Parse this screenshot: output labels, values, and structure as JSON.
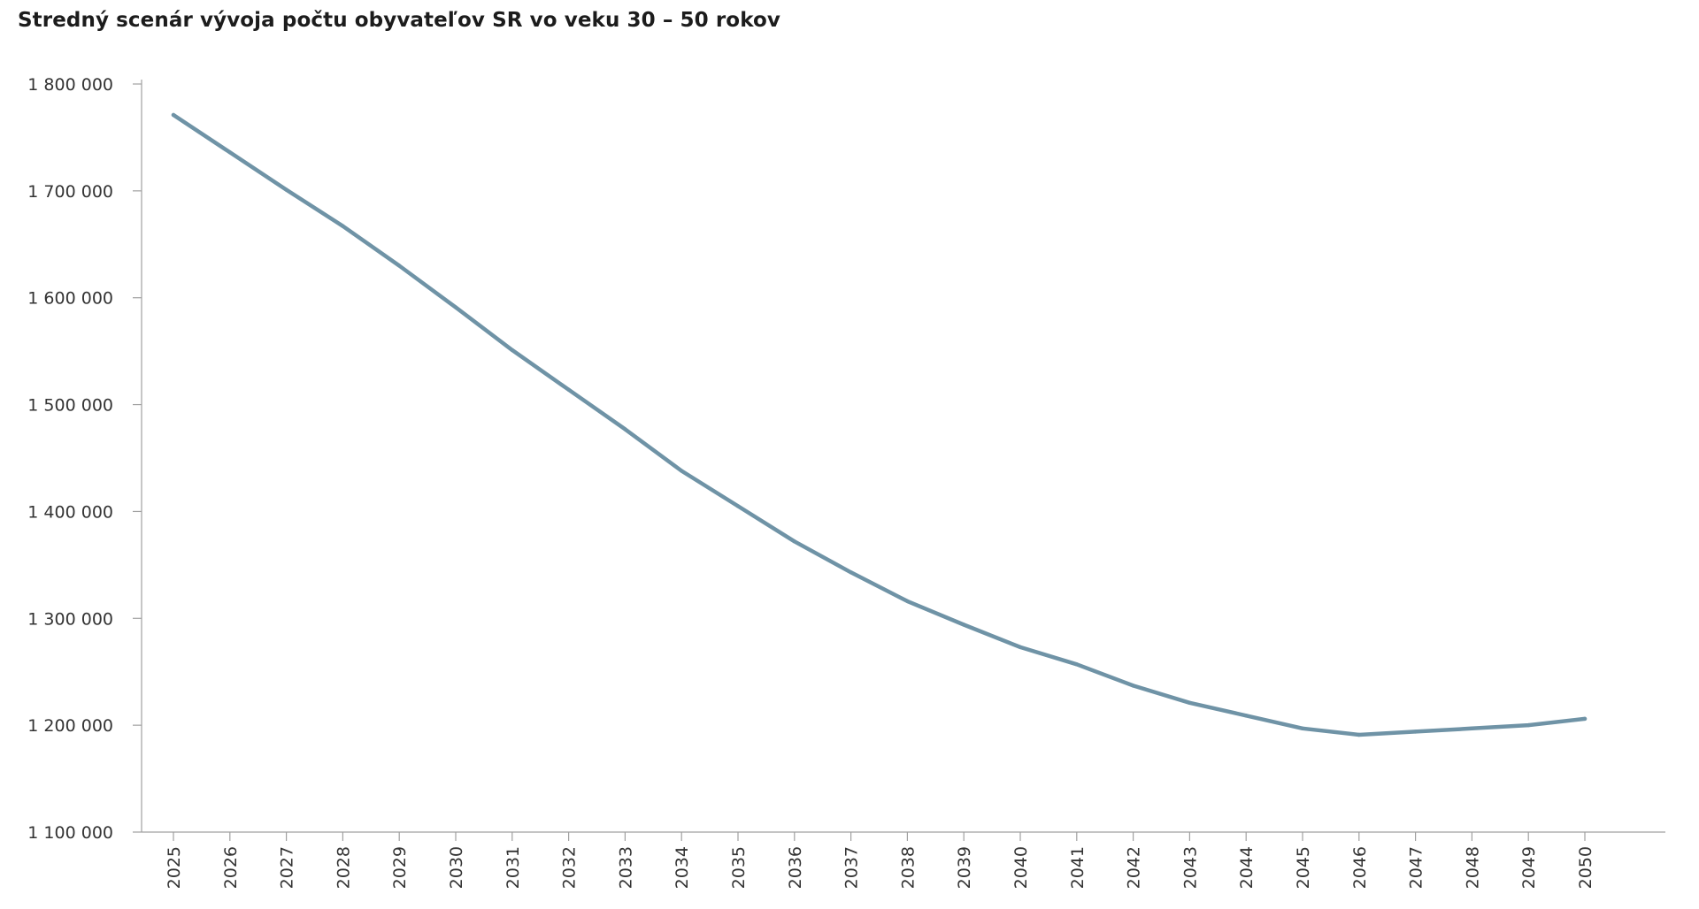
{
  "chart_data": {
    "type": "line",
    "title": "Stredný scenár vývoja počtu obyvateľov SR vo veku 30 – 50 rokov",
    "xlabel": "",
    "ylabel": "",
    "ylim": [
      1100000,
      1800000
    ],
    "y_ticks": [
      1100000,
      1200000,
      1300000,
      1400000,
      1500000,
      1600000,
      1700000,
      1800000
    ],
    "y_tick_labels": [
      "1 100 000",
      "1 200 000",
      "1 300 000",
      "1 400 000",
      "1 500 000",
      "1 600 000",
      "1 700 000",
      "1 800 000"
    ],
    "categories": [
      "2025",
      "2026",
      "2027",
      "2028",
      "2029",
      "2030",
      "2031",
      "2032",
      "2033",
      "2034",
      "2035",
      "2036",
      "2037",
      "2038",
      "2039",
      "2040",
      "2041",
      "2042",
      "2043",
      "2044",
      "2045",
      "2046",
      "2047",
      "2048",
      "2049",
      "2050"
    ],
    "series": [
      {
        "values": [
          1771000,
          1736000,
          1701000,
          1667000,
          1630000,
          1591000,
          1551000,
          1514000,
          1477000,
          1438000,
          1405000,
          1372000,
          1343000,
          1316000,
          1294000,
          1273000,
          1257000,
          1237000,
          1221000,
          1209000,
          1197000,
          1191000,
          1194000,
          1197000,
          1200000,
          1206000
        ],
        "color": "#6f93a6"
      }
    ],
    "grid": false,
    "legend": "none"
  }
}
